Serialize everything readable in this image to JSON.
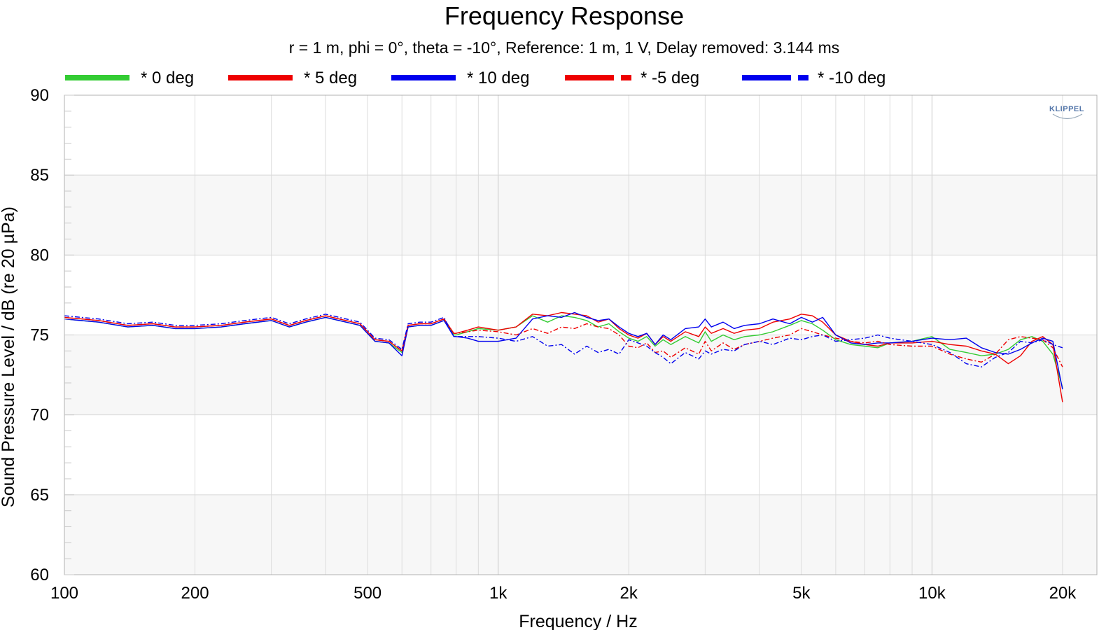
{
  "chart_data": {
    "type": "line",
    "title": "Frequency Response",
    "subtitle": "r = 1 m, phi = 0°, theta = -10°, Reference: 1 m, 1 V, Delay removed: 3.144 ms",
    "xlabel": "Frequency / Hz",
    "ylabel": "Sound Pressure Level / dB (re 20 µPa)",
    "x_scale": "log",
    "xlim": [
      100,
      24000
    ],
    "ylim": [
      60,
      90
    ],
    "x_ticks": [
      {
        "value": 100,
        "label": "100"
      },
      {
        "value": 200,
        "label": "200"
      },
      {
        "value": 500,
        "label": "500"
      },
      {
        "value": 1000,
        "label": "1k"
      },
      {
        "value": 2000,
        "label": "2k"
      },
      {
        "value": 5000,
        "label": "5k"
      },
      {
        "value": 10000,
        "label": "10k"
      },
      {
        "value": 20000,
        "label": "20k"
      }
    ],
    "y_ticks": [
      60,
      65,
      70,
      75,
      80,
      85,
      90
    ],
    "grid": true,
    "legend_position": "top",
    "logo_text": "KLIPPEL",
    "series": [
      {
        "name": "* 0 deg",
        "color": "#33cc33",
        "dash": "solid",
        "x": [
          100,
          120,
          140,
          160,
          180,
          200,
          230,
          260,
          300,
          330,
          360,
          400,
          430,
          480,
          520,
          560,
          600,
          620,
          660,
          700,
          750,
          790,
          800,
          850,
          900,
          1000,
          1100,
          1200,
          1300,
          1400,
          1500,
          1600,
          1700,
          1800,
          1900,
          2000,
          2100,
          2200,
          2300,
          2400,
          2500,
          2700,
          2900,
          3000,
          3100,
          3300,
          3500,
          3700,
          4000,
          4300,
          4700,
          5000,
          5300,
          5600,
          6000,
          6500,
          7000,
          7500,
          8000,
          9000,
          10000,
          11000,
          12000,
          13000,
          14000,
          15000,
          16000,
          17000,
          18000,
          19000,
          20000
        ],
        "y": [
          76.0,
          75.8,
          75.5,
          75.6,
          75.4,
          75.4,
          75.5,
          75.7,
          75.9,
          75.5,
          75.8,
          76.1,
          75.9,
          75.6,
          74.6,
          74.5,
          73.9,
          75.5,
          75.6,
          75.6,
          75.9,
          75.0,
          75.0,
          75.2,
          75.4,
          75.3,
          75.5,
          76.2,
          75.8,
          76.2,
          76.1,
          75.9,
          75.5,
          75.7,
          75.2,
          74.8,
          74.6,
          74.9,
          74.3,
          74.7,
          74.4,
          74.9,
          74.5,
          75.2,
          74.6,
          75.0,
          74.7,
          74.9,
          75.0,
          75.2,
          75.6,
          75.9,
          75.7,
          75.3,
          74.7,
          74.4,
          74.3,
          74.2,
          74.5,
          74.6,
          74.9,
          74.1,
          73.9,
          73.7,
          73.8,
          74.1,
          74.7,
          74.9,
          74.6,
          73.8,
          71.7
        ]
      },
      {
        "name": "* 5 deg",
        "color": "#ee0000",
        "dash": "solid",
        "x": [
          100,
          120,
          140,
          160,
          180,
          200,
          230,
          260,
          300,
          330,
          360,
          400,
          430,
          480,
          520,
          560,
          600,
          620,
          660,
          700,
          750,
          790,
          800,
          850,
          900,
          1000,
          1100,
          1200,
          1300,
          1400,
          1500,
          1600,
          1700,
          1800,
          1900,
          2000,
          2100,
          2200,
          2300,
          2400,
          2500,
          2700,
          2900,
          3000,
          3100,
          3300,
          3500,
          3700,
          4000,
          4300,
          4700,
          5000,
          5300,
          5600,
          6000,
          6500,
          7000,
          7500,
          8000,
          9000,
          10000,
          11000,
          12000,
          13000,
          14000,
          15000,
          16000,
          17000,
          18000,
          19000,
          20000
        ],
        "y": [
          76.1,
          75.9,
          75.6,
          75.7,
          75.5,
          75.5,
          75.6,
          75.8,
          76.0,
          75.6,
          75.9,
          76.2,
          76.0,
          75.7,
          74.7,
          74.6,
          74.0,
          75.6,
          75.7,
          75.7,
          76.0,
          75.1,
          75.1,
          75.3,
          75.5,
          75.3,
          75.5,
          76.3,
          76.2,
          76.4,
          76.3,
          76.2,
          75.8,
          76.0,
          75.4,
          75.0,
          74.8,
          75.1,
          74.4,
          74.9,
          74.6,
          75.2,
          74.9,
          75.5,
          75.1,
          75.4,
          75.1,
          75.3,
          75.4,
          75.8,
          76.0,
          76.3,
          76.2,
          75.8,
          75.0,
          74.6,
          74.4,
          74.3,
          74.5,
          74.5,
          74.6,
          74.4,
          74.3,
          74.0,
          73.8,
          73.2,
          73.7,
          74.6,
          74.9,
          74.4,
          70.8
        ]
      },
      {
        "name": "* 10 deg",
        "color": "#0000ee",
        "dash": "solid",
        "x": [
          100,
          120,
          140,
          160,
          180,
          200,
          230,
          260,
          300,
          330,
          360,
          400,
          430,
          480,
          520,
          560,
          600,
          620,
          660,
          700,
          750,
          790,
          800,
          850,
          900,
          1000,
          1100,
          1200,
          1300,
          1400,
          1500,
          1600,
          1700,
          1800,
          1900,
          2000,
          2100,
          2200,
          2300,
          2400,
          2500,
          2700,
          2900,
          3000,
          3100,
          3300,
          3500,
          3700,
          4000,
          4300,
          4700,
          5000,
          5300,
          5600,
          6000,
          6500,
          7000,
          7500,
          8000,
          9000,
          10000,
          11000,
          12000,
          13000,
          14000,
          15000,
          16000,
          17000,
          18000,
          19000,
          20000
        ],
        "y": [
          76.0,
          75.8,
          75.5,
          75.6,
          75.4,
          75.4,
          75.5,
          75.7,
          75.9,
          75.5,
          75.8,
          76.1,
          75.9,
          75.6,
          74.6,
          74.5,
          73.7,
          75.5,
          75.6,
          75.6,
          75.9,
          74.9,
          74.9,
          74.8,
          74.6,
          74.6,
          74.8,
          76.0,
          76.2,
          76.1,
          76.4,
          76.1,
          75.9,
          76.0,
          75.5,
          75.1,
          74.9,
          75.1,
          74.4,
          75.0,
          74.7,
          75.4,
          75.5,
          76.0,
          75.5,
          75.8,
          75.4,
          75.6,
          75.7,
          76.0,
          75.7,
          76.1,
          75.8,
          76.1,
          75.0,
          74.5,
          74.4,
          74.5,
          74.5,
          74.6,
          74.8,
          74.7,
          74.8,
          74.2,
          73.9,
          73.8,
          74.1,
          74.5,
          74.8,
          74.6,
          71.6
        ]
      },
      {
        "name": "* -5 deg",
        "color": "#ee0000",
        "dash": "dashed",
        "x": [
          100,
          120,
          140,
          160,
          180,
          200,
          230,
          260,
          300,
          330,
          360,
          400,
          430,
          480,
          520,
          560,
          600,
          620,
          660,
          700,
          750,
          790,
          800,
          850,
          900,
          1000,
          1100,
          1200,
          1300,
          1400,
          1500,
          1600,
          1700,
          1800,
          1900,
          2000,
          2100,
          2200,
          2300,
          2400,
          2500,
          2700,
          2900,
          3000,
          3100,
          3300,
          3500,
          3700,
          4000,
          4300,
          4700,
          5000,
          5300,
          5600,
          6000,
          6500,
          7000,
          7500,
          8000,
          9000,
          10000,
          11000,
          12000,
          13000,
          14000,
          15000,
          16000,
          17000,
          18000,
          19000,
          20000
        ],
        "y": [
          76.1,
          75.9,
          75.6,
          75.7,
          75.5,
          75.5,
          75.6,
          75.8,
          76.0,
          75.6,
          75.9,
          76.2,
          76.0,
          75.7,
          74.7,
          74.6,
          74.0,
          75.6,
          75.7,
          75.7,
          76.0,
          75.1,
          75.1,
          75.2,
          75.3,
          75.2,
          75.0,
          75.4,
          75.1,
          75.5,
          75.4,
          75.7,
          75.5,
          75.4,
          75.0,
          74.3,
          74.2,
          74.5,
          73.9,
          74.0,
          73.6,
          74.2,
          73.8,
          74.6,
          74.0,
          74.5,
          74.1,
          74.4,
          74.6,
          74.8,
          75.0,
          75.4,
          75.2,
          75.0,
          74.8,
          74.6,
          74.5,
          74.6,
          74.4,
          74.3,
          74.3,
          73.8,
          73.5,
          73.3,
          73.8,
          74.7,
          74.9,
          74.8,
          74.7,
          74.2,
          73.0
        ]
      },
      {
        "name": "* -10 deg",
        "color": "#0000ee",
        "dash": "dashed",
        "x": [
          100,
          120,
          140,
          160,
          180,
          200,
          230,
          260,
          300,
          330,
          360,
          400,
          430,
          480,
          520,
          560,
          600,
          620,
          660,
          700,
          750,
          790,
          800,
          850,
          900,
          1000,
          1100,
          1200,
          1300,
          1400,
          1500,
          1600,
          1700,
          1800,
          1900,
          2000,
          2100,
          2200,
          2300,
          2400,
          2500,
          2700,
          2900,
          3000,
          3100,
          3300,
          3500,
          3700,
          4000,
          4300,
          4700,
          5000,
          5300,
          5600,
          6000,
          6500,
          7000,
          7500,
          8000,
          9000,
          10000,
          11000,
          12000,
          13000,
          14000,
          15000,
          16000,
          17000,
          18000,
          19000,
          20000
        ],
        "y": [
          76.2,
          76.0,
          75.7,
          75.8,
          75.6,
          75.6,
          75.7,
          75.9,
          76.1,
          75.7,
          76.0,
          76.3,
          76.1,
          75.8,
          74.8,
          74.7,
          74.1,
          75.7,
          75.8,
          75.8,
          76.1,
          74.9,
          74.9,
          74.9,
          74.9,
          74.8,
          74.6,
          74.9,
          74.3,
          74.4,
          73.8,
          74.3,
          73.9,
          74.1,
          73.8,
          74.7,
          74.5,
          74.3,
          73.9,
          73.6,
          73.2,
          73.9,
          73.5,
          74.0,
          73.8,
          74.1,
          74.0,
          74.4,
          74.6,
          74.4,
          74.8,
          74.7,
          74.9,
          75.0,
          74.6,
          74.7,
          74.8,
          75.0,
          74.8,
          74.6,
          74.4,
          73.9,
          73.2,
          73.0,
          73.6,
          73.9,
          74.6,
          74.5,
          74.7,
          74.4,
          74.2
        ]
      }
    ]
  }
}
